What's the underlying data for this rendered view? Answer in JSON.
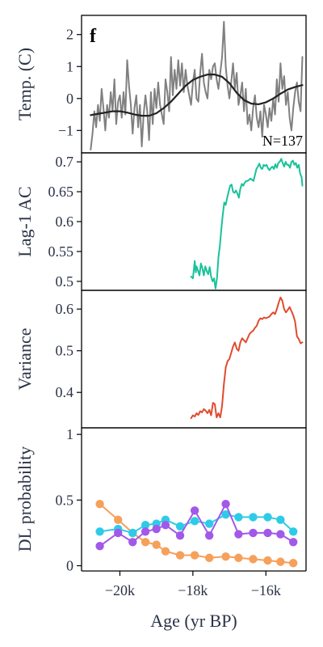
{
  "figure": {
    "panel_letter": "f"
  },
  "chart_data": [
    {
      "type": "line",
      "ylabel": "Temp. (C)",
      "ylim": [
        -1.7,
        2.6
      ],
      "yticks": [
        -1,
        0,
        1,
        2
      ],
      "ytick_labels": [
        "−1",
        "0",
        "1",
        "2"
      ],
      "annotation": "N=137",
      "series": [
        {
          "color": "#808080",
          "x": [
            -20.8,
            -20.75,
            -20.7,
            -20.65,
            -20.6,
            -20.55,
            -20.5,
            -20.45,
            -20.4,
            -20.35,
            -20.3,
            -20.25,
            -20.2,
            -20.15,
            -20.1,
            -20.05,
            -20.0,
            -19.95,
            -19.9,
            -19.85,
            -19.8,
            -19.75,
            -19.7,
            -19.65,
            -19.6,
            -19.55,
            -19.5,
            -19.45,
            -19.4,
            -19.35,
            -19.3,
            -19.25,
            -19.2,
            -19.15,
            -19.1,
            -19.05,
            -19.0,
            -18.95,
            -18.9,
            -18.85,
            -18.8,
            -18.75,
            -18.7,
            -18.65,
            -18.6,
            -18.55,
            -18.5,
            -18.45,
            -18.4,
            -18.35,
            -18.3,
            -18.25,
            -18.2,
            -18.15,
            -18.1,
            -18.05,
            -18.0,
            -17.95,
            -17.9,
            -17.85,
            -17.8,
            -17.75,
            -17.7,
            -17.65,
            -17.6,
            -17.55,
            -17.5,
            -17.45,
            -17.4,
            -17.35,
            -17.3,
            -17.25,
            -17.2,
            -17.15,
            -17.1,
            -17.05,
            -17.0,
            -16.95,
            -16.9,
            -16.85,
            -16.8,
            -16.75,
            -16.7,
            -16.65,
            -16.6,
            -16.55,
            -16.5,
            -16.45,
            -16.4,
            -16.35,
            -16.3,
            -16.25,
            -16.2,
            -16.15,
            -16.1,
            -16.05,
            -16.0,
            -15.95,
            -15.9,
            -15.85,
            -15.8,
            -15.75,
            -15.7,
            -15.65,
            -15.6,
            -15.55,
            -15.5,
            -15.45,
            -15.4,
            -15.35,
            -15.3,
            -15.25,
            -15.2,
            -15.15,
            -15.1,
            -15.05,
            -15.0
          ],
          "y": [
            -1.6,
            -1.1,
            -0.4,
            -0.9,
            -0.2,
            -0.7,
            0.3,
            -0.3,
            -1.0,
            -0.2,
            -0.6,
            0.2,
            -0.4,
            0.6,
            -0.8,
            -0.1,
            0.1,
            -0.6,
            0.2,
            -0.5,
            1.2,
            0.4,
            -0.2,
            -1.1,
            -0.3,
            0.1,
            -0.9,
            -0.2,
            -1.5,
            -0.5,
            0.1,
            -0.4,
            -1.3,
            0.2,
            -0.8,
            0.3,
            -0.3,
            0.5,
            -0.2,
            -0.5,
            -0.8,
            0.6,
            0.2,
            -0.4,
            1.3,
            0.1,
            0.9,
            0.3,
            1.2,
            0.4,
            1.1,
            0.2,
            0.9,
            0.4,
            0.1,
            -0.2,
            0.5,
            0.9,
            0.0,
            -0.1,
            0.8,
            1.4,
            0.5,
            0.2,
            0.0,
            0.9,
            0.6,
            1.0,
            1.1,
            0.6,
            0.3,
            0.8,
            1.3,
            2.4,
            1.0,
            0.4,
            0.0,
            0.5,
            1.1,
            0.3,
            0.8,
            -0.2,
            0.1,
            0.5,
            -0.4,
            0.3,
            -0.8,
            -0.5,
            -1.0,
            -0.3,
            0.1,
            -0.6,
            -0.9,
            -0.4,
            -1.2,
            -0.2,
            -0.5,
            -0.9,
            -0.3,
            -0.7,
            0.0,
            -0.5,
            0.6,
            -0.1,
            1.1,
            0.3,
            0.7,
            -0.2,
            0.2,
            -0.6,
            -1.0,
            -0.3,
            0.2,
            0.5,
            -0.1,
            -0.4,
            1.3
          ]
        },
        {
          "color": "#222222",
          "x": [
            -20.8,
            -20.6,
            -20.4,
            -20.2,
            -20.0,
            -19.8,
            -19.6,
            -19.4,
            -19.2,
            -19.0,
            -18.8,
            -18.6,
            -18.4,
            -18.2,
            -18.0,
            -17.8,
            -17.6,
            -17.4,
            -17.2,
            -17.0,
            -16.8,
            -16.6,
            -16.4,
            -16.2,
            -16.0,
            -15.8,
            -15.6,
            -15.4,
            -15.2,
            -15.0
          ],
          "y": [
            -0.52,
            -0.48,
            -0.44,
            -0.4,
            -0.4,
            -0.44,
            -0.5,
            -0.54,
            -0.54,
            -0.46,
            -0.3,
            -0.1,
            0.15,
            0.4,
            0.58,
            0.68,
            0.75,
            0.75,
            0.68,
            0.48,
            0.18,
            -0.05,
            -0.16,
            -0.18,
            -0.12,
            0.0,
            0.15,
            0.28,
            0.36,
            0.42
          ]
        }
      ]
    },
    {
      "type": "line",
      "ylabel": "Lag-1 AC",
      "ylim": [
        0.485,
        0.715
      ],
      "yticks": [
        0.5,
        0.55,
        0.6,
        0.65,
        0.7
      ],
      "ytick_labels": [
        "0.5",
        "0.55",
        "0.6",
        "0.65",
        "0.7"
      ],
      "series": [
        {
          "color": "#19c29a",
          "x": [
            -18.05,
            -18.0,
            -17.98,
            -17.95,
            -17.92,
            -17.9,
            -17.86,
            -17.82,
            -17.78,
            -17.74,
            -17.7,
            -17.66,
            -17.62,
            -17.58,
            -17.54,
            -17.5,
            -17.46,
            -17.42,
            -17.38,
            -17.34,
            -17.3,
            -17.26,
            -17.22,
            -17.18,
            -17.14,
            -17.1,
            -17.06,
            -17.02,
            -16.98,
            -16.94,
            -16.9,
            -16.86,
            -16.82,
            -16.78,
            -16.74,
            -16.7,
            -16.66,
            -16.62,
            -16.58,
            -16.54,
            -16.5,
            -16.46,
            -16.42,
            -16.38,
            -16.34,
            -16.3,
            -16.26,
            -16.22,
            -16.18,
            -16.14,
            -16.1,
            -16.06,
            -16.02,
            -15.98,
            -15.94,
            -15.9,
            -15.86,
            -15.82,
            -15.78,
            -15.74,
            -15.7,
            -15.66,
            -15.62,
            -15.58,
            -15.54,
            -15.5,
            -15.46,
            -15.42,
            -15.38,
            -15.34,
            -15.3,
            -15.26,
            -15.22,
            -15.18,
            -15.14,
            -15.1,
            -15.06,
            -15.02,
            -15.0
          ],
          "y": [
            0.508,
            0.505,
            0.516,
            0.534,
            0.515,
            0.525,
            0.518,
            0.51,
            0.53,
            0.522,
            0.51,
            0.525,
            0.517,
            0.512,
            0.524,
            0.508,
            0.5,
            0.505,
            0.488,
            0.505,
            0.54,
            0.56,
            0.588,
            0.612,
            0.632,
            0.628,
            0.64,
            0.65,
            0.66,
            0.662,
            0.65,
            0.648,
            0.652,
            0.647,
            0.64,
            0.655,
            0.663,
            0.66,
            0.665,
            0.668,
            0.668,
            0.67,
            0.672,
            0.67,
            0.668,
            0.678,
            0.688,
            0.692,
            0.697,
            0.69,
            0.688,
            0.695,
            0.693,
            0.695,
            0.689,
            0.686,
            0.69,
            0.692,
            0.688,
            0.696,
            0.69,
            0.698,
            0.7,
            0.705,
            0.698,
            0.692,
            0.7,
            0.695,
            0.695,
            0.69,
            0.7,
            0.702,
            0.695,
            0.698,
            0.69,
            0.695,
            0.68,
            0.674,
            0.66
          ]
        }
      ]
    },
    {
      "type": "line",
      "ylabel": "Variance",
      "ylim": [
        0.315,
        0.645
      ],
      "yticks": [
        0.4,
        0.5,
        0.6
      ],
      "ytick_labels": [
        "0.4",
        "0.5",
        "0.6"
      ],
      "series": [
        {
          "color": "#e04b2e",
          "x": [
            -18.05,
            -18.0,
            -17.95,
            -17.9,
            -17.85,
            -17.8,
            -17.75,
            -17.7,
            -17.65,
            -17.6,
            -17.55,
            -17.5,
            -17.45,
            -17.4,
            -17.35,
            -17.3,
            -17.25,
            -17.2,
            -17.15,
            -17.1,
            -17.05,
            -17.0,
            -16.95,
            -16.9,
            -16.85,
            -16.8,
            -16.75,
            -16.7,
            -16.65,
            -16.6,
            -16.55,
            -16.5,
            -16.45,
            -16.4,
            -16.35,
            -16.3,
            -16.25,
            -16.2,
            -16.15,
            -16.1,
            -16.05,
            -16.0,
            -15.95,
            -15.9,
            -15.85,
            -15.8,
            -15.75,
            -15.7,
            -15.65,
            -15.6,
            -15.55,
            -15.5,
            -15.45,
            -15.4,
            -15.35,
            -15.3,
            -15.25,
            -15.2,
            -15.15,
            -15.1,
            -15.05,
            -15.0
          ],
          "y": [
            0.338,
            0.345,
            0.342,
            0.35,
            0.346,
            0.355,
            0.352,
            0.36,
            0.356,
            0.35,
            0.358,
            0.345,
            0.375,
            0.372,
            0.34,
            0.35,
            0.34,
            0.368,
            0.42,
            0.46,
            0.475,
            0.48,
            0.495,
            0.51,
            0.52,
            0.505,
            0.5,
            0.52,
            0.53,
            0.525,
            0.52,
            0.53,
            0.54,
            0.545,
            0.548,
            0.555,
            0.56,
            0.572,
            0.578,
            0.576,
            0.58,
            0.578,
            0.58,
            0.582,
            0.588,
            0.592,
            0.588,
            0.6,
            0.615,
            0.628,
            0.62,
            0.6,
            0.592,
            0.598,
            0.605,
            0.595,
            0.585,
            0.57,
            0.535,
            0.528,
            0.518,
            0.52
          ]
        }
      ]
    },
    {
      "type": "line",
      "ylabel": "DL probability",
      "xlabel": "Age (yr BP)",
      "ylim": [
        -0.04,
        1.05
      ],
      "xlim": [
        -21.05,
        -14.9
      ],
      "yticks": [
        0,
        0.5,
        1
      ],
      "ytick_labels": [
        "0",
        "0.5",
        "1"
      ],
      "xticks": [
        -20,
        -18,
        -16
      ],
      "xtick_labels": [
        "−20k",
        "−18k",
        "−16k"
      ],
      "series": [
        {
          "color": "#f6a05a",
          "x": [
            -20.55,
            -20.05,
            -19.65,
            -19.3,
            -19.0,
            -18.75,
            -18.35,
            -17.95,
            -17.55,
            -17.1,
            -16.75,
            -16.35,
            -15.95,
            -15.6,
            -15.25
          ],
          "y": [
            0.47,
            0.35,
            0.25,
            0.18,
            0.16,
            0.11,
            0.08,
            0.08,
            0.06,
            0.07,
            0.06,
            0.05,
            0.04,
            0.03,
            0.02
          ]
        },
        {
          "color": "#2ecbe7",
          "x": [
            -20.55,
            -20.05,
            -19.65,
            -19.3,
            -19.0,
            -18.75,
            -18.35,
            -17.95,
            -17.55,
            -17.1,
            -16.75,
            -16.35,
            -15.95,
            -15.6,
            -15.25
          ],
          "y": [
            0.26,
            0.28,
            0.25,
            0.31,
            0.32,
            0.35,
            0.3,
            0.34,
            0.32,
            0.39,
            0.37,
            0.37,
            0.37,
            0.35,
            0.26
          ]
        },
        {
          "color": "#a259e9",
          "x": [
            -20.55,
            -20.05,
            -19.65,
            -19.3,
            -19.0,
            -18.75,
            -18.35,
            -17.95,
            -17.55,
            -17.1,
            -16.75,
            -16.35,
            -15.95,
            -15.6,
            -15.25
          ],
          "y": [
            0.15,
            0.25,
            0.18,
            0.26,
            0.28,
            0.31,
            0.23,
            0.42,
            0.23,
            0.47,
            0.24,
            0.25,
            0.25,
            0.24,
            0.18
          ]
        }
      ]
    }
  ]
}
